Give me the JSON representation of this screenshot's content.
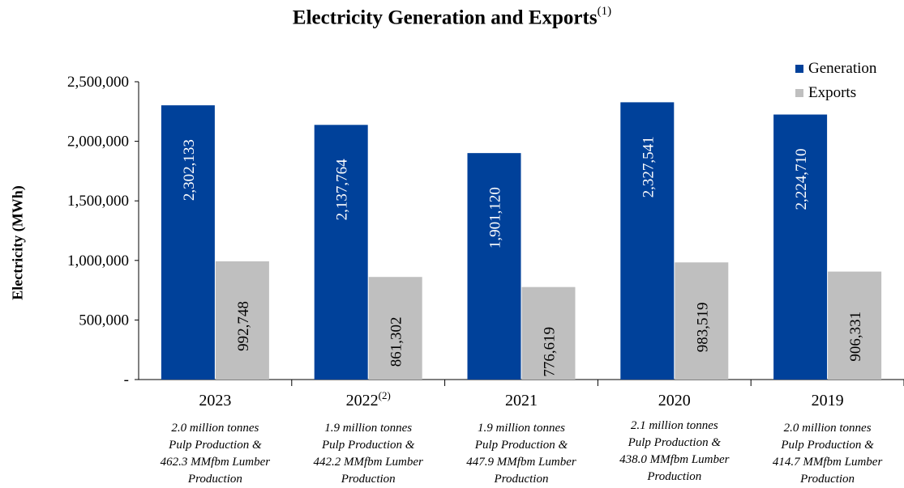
{
  "chart_data": {
    "type": "bar",
    "title": "Electricity Generation and Exports",
    "title_superscript": "(1)",
    "ylabel": "Electricity (MWh)",
    "xlabel": "",
    "ylim": [
      0,
      2500000
    ],
    "yticks": [
      {
        "value": 0,
        "label": "-"
      },
      {
        "value": 500000,
        "label": "500,000"
      },
      {
        "value": 1000000,
        "label": "1,000,000"
      },
      {
        "value": 1500000,
        "label": "1,500,000"
      },
      {
        "value": 2000000,
        "label": "2,000,000"
      },
      {
        "value": 2500000,
        "label": "2,500,000"
      }
    ],
    "categories": [
      "2023",
      "2022",
      "2021",
      "2020",
      "2019"
    ],
    "category_superscripts": [
      "",
      "(2)",
      "",
      "",
      ""
    ],
    "category_notes": [
      "2.0 million tonnes\nPulp Production &\n462.3 MMfbm Lumber\nProduction",
      "1.9 million tonnes\nPulp Production &\n442.2 MMfbm Lumber\nProduction",
      "1.9 million tonnes\nPulp Production &\n447.9 MMfbm Lumber\nProduction",
      "2.1 million tonnes\nPulp Production &\n438.0 MMfbm Lumber\nProduction",
      "2.0 million tonnes\nPulp Production &\n414.7 MMfbm Lumber\nProduction"
    ],
    "series": [
      {
        "name": "Generation",
        "color": "#00419a",
        "values": [
          2302133,
          2137764,
          1901120,
          2327541,
          2224710
        ],
        "labels": [
          "2,302,133",
          "2,137,764",
          "1,901,120",
          "2,327,541",
          "2,224,710"
        ]
      },
      {
        "name": "Exports",
        "color": "#bfbfbf",
        "values": [
          992748,
          861302,
          776619,
          983519,
          906331
        ],
        "labels": [
          "992,748",
          "861,302",
          "776,619",
          "983,519",
          "906,331"
        ]
      }
    ],
    "legend_position": "top-right",
    "grid": false
  }
}
